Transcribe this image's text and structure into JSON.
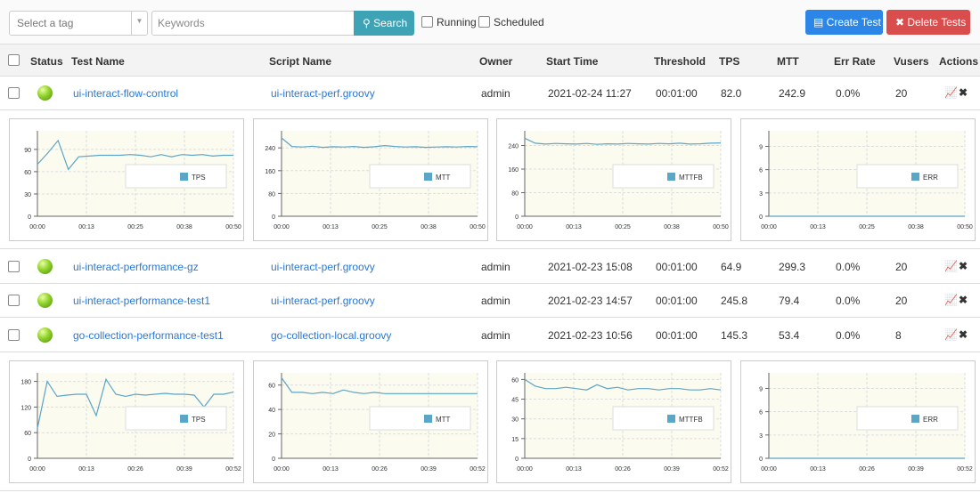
{
  "toolbar": {
    "tag_placeholder": "Select a tag",
    "keyword_placeholder": "Keywords",
    "search": "Search",
    "running": "Running",
    "scheduled": "Scheduled",
    "create": "Create Test",
    "delete": "Delete Tests"
  },
  "table": {
    "headers": [
      "Status",
      "Test Name",
      "Script Name",
      "Owner",
      "Start Time",
      "Threshold",
      "TPS",
      "MTT",
      "Err Rate",
      "Vusers",
      "Actions"
    ],
    "rows": [
      [
        "ui-interact-flow-control",
        "ui-interact-perf.groovy",
        "admin",
        "2021-02-24 11:27",
        "00:01:00",
        "82.0",
        "242.9",
        "0.0%",
        "20"
      ],
      [
        "ui-interact-performance-gz",
        "ui-interact-perf.groovy",
        "admin",
        "2021-02-23 15:08",
        "00:01:00",
        "64.9",
        "299.3",
        "0.0%",
        "20"
      ],
      [
        "ui-interact-performance-test1",
        "ui-interact-perf.groovy",
        "admin",
        "2021-02-23 14:57",
        "00:01:00",
        "245.8",
        "79.4",
        "0.0%",
        "20"
      ],
      [
        "go-collection-performance-test1",
        "go-collection-local.groovy",
        "admin",
        "2021-02-23 10:56",
        "00:01:00",
        "145.3",
        "53.4",
        "0.0%",
        "8"
      ]
    ]
  },
  "details": [
    {
      "charts": [
        {
          "type": "line",
          "x_labels": [
            "00:00",
            "00:13",
            "00:25",
            "00:38",
            "00:50"
          ],
          "ylim": [
            0,
            115
          ],
          "yticks": [
            0,
            30,
            60,
            90
          ],
          "series": [
            {
              "name": "TPS",
              "color": "#5ba5c6",
              "values": [
                70,
                85,
                102,
                63,
                80,
                81,
                82,
                82,
                82,
                83,
                82,
                80,
                83,
                80,
                83,
                82,
                83,
                81,
                82,
                82
              ]
            }
          ]
        },
        {
          "type": "line",
          "x_labels": [
            "00:00",
            "00:13",
            "00:25",
            "00:38",
            "00:50"
          ],
          "ylim": [
            0,
            300
          ],
          "yticks": [
            0,
            80,
            160,
            240
          ],
          "series": [
            {
              "name": "MTT",
              "color": "#5ba5c6",
              "values": [
                275,
                245,
                243,
                246,
                242,
                244,
                243,
                245,
                242,
                244,
                248,
                245,
                243,
                244,
                242,
                243,
                244,
                243,
                245,
                244
              ]
            }
          ]
        },
        {
          "type": "line",
          "x_labels": [
            "00:00",
            "00:13",
            "00:25",
            "00:38",
            "00:50"
          ],
          "ylim": [
            0,
            290
          ],
          "yticks": [
            0,
            80,
            160,
            240
          ],
          "series": [
            {
              "name": "MTTFB",
              "color": "#5ba5c6",
              "values": [
                265,
                248,
                245,
                247,
                246,
                245,
                247,
                244,
                246,
                245,
                247,
                246,
                245,
                247,
                246,
                248,
                245,
                246,
                248,
                249
              ]
            }
          ]
        },
        {
          "type": "line",
          "x_labels": [
            "00:00",
            "00:13",
            "00:25",
            "00:38",
            "00:50"
          ],
          "ylim": [
            0,
            11
          ],
          "yticks": [
            0,
            3,
            6,
            9
          ],
          "series": [
            {
              "name": "ERR",
              "color": "#5ba5c6",
              "values": [
                0,
                0,
                0,
                0,
                0,
                0,
                0,
                0,
                0,
                0,
                0,
                0,
                0,
                0,
                0,
                0,
                0,
                0,
                0,
                0
              ]
            }
          ]
        }
      ]
    },
    {
      "charts": [
        {
          "type": "line",
          "x_labels": [
            "00:00",
            "00:13",
            "00:26",
            "00:39",
            "00:52"
          ],
          "ylim": [
            0,
            200
          ],
          "yticks": [
            0,
            60,
            120,
            180
          ],
          "series": [
            {
              "name": "TPS",
              "color": "#5ba5c6",
              "values": [
                70,
                180,
                145,
                148,
                150,
                150,
                100,
                185,
                150,
                145,
                150,
                148,
                150,
                152,
                150,
                150,
                148,
                120,
                150,
                150,
                155
              ]
            }
          ]
        },
        {
          "type": "line",
          "x_labels": [
            "00:00",
            "00:13",
            "00:26",
            "00:39",
            "00:52"
          ],
          "ylim": [
            0,
            70
          ],
          "yticks": [
            0,
            20,
            40,
            60
          ],
          "series": [
            {
              "name": "MTT",
              "color": "#5ba5c6",
              "values": [
                66,
                54,
                54,
                53,
                54,
                53,
                56,
                54,
                53,
                54,
                53,
                53,
                53,
                53,
                53,
                53,
                53,
                53,
                53,
                53
              ]
            }
          ]
        },
        {
          "type": "line",
          "x_labels": [
            "00:00",
            "00:13",
            "00:26",
            "00:39",
            "00:52"
          ],
          "ylim": [
            0,
            65
          ],
          "yticks": [
            0,
            15,
            30,
            45,
            60
          ],
          "series": [
            {
              "name": "MTTFB",
              "color": "#5ba5c6",
              "values": [
                60,
                55,
                53,
                53,
                54,
                53,
                52,
                56,
                53,
                54,
                52,
                53,
                53,
                52,
                53,
                53,
                52,
                52,
                53,
                52
              ]
            }
          ]
        },
        {
          "type": "line",
          "x_labels": [
            "00:00",
            "00:13",
            "00:26",
            "00:39",
            "00:52"
          ],
          "ylim": [
            0,
            11
          ],
          "yticks": [
            0,
            3,
            6,
            9
          ],
          "series": [
            {
              "name": "ERR",
              "color": "#5ba5c6",
              "values": [
                0,
                0,
                0,
                0,
                0,
                0,
                0,
                0,
                0,
                0,
                0,
                0,
                0,
                0,
                0,
                0,
                0,
                0,
                0,
                0
              ]
            }
          ]
        }
      ]
    }
  ]
}
